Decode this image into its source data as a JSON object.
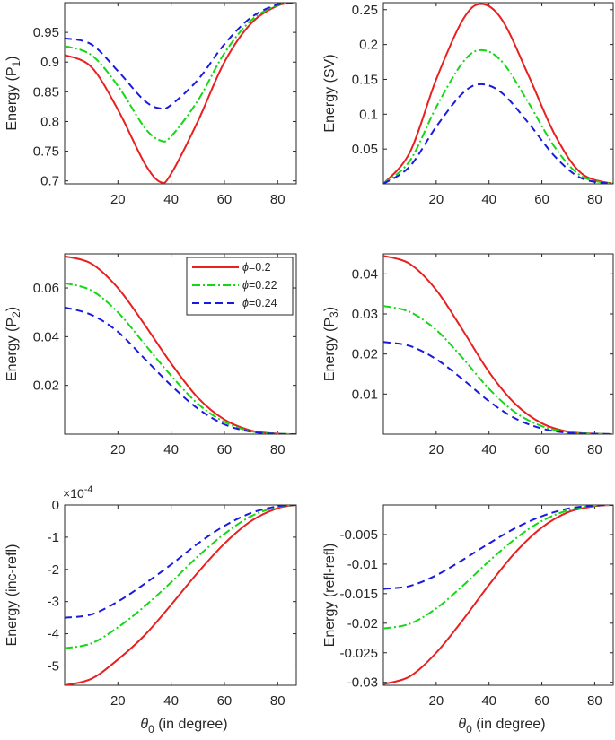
{
  "colors": {
    "phi_0_2": "#e8201f",
    "phi_0_22": "#14d814",
    "phi_0_24": "#1a1adf",
    "axes": "#262626"
  },
  "legend": {
    "entries": [
      "ϕ=0.2",
      "ϕ=0.22",
      "ϕ=0.24"
    ],
    "symbol": "ϕ",
    "values": [
      "0.2",
      "0.22",
      "0.24"
    ],
    "placement": "top-right of middle-left panel"
  },
  "shared_xlabel": {
    "theta": "θ",
    "sub": "0",
    "rest": " (in degree)"
  },
  "chart_data": [
    {
      "type": "line",
      "id": "p1",
      "ylabel_main": "Energy (P",
      "ylabel_sub": "1",
      "ylabel_close": ")",
      "xlim": [
        0,
        87
      ],
      "ylim": [
        0.695,
        1.0
      ],
      "xticks": [
        "20",
        "40",
        "60",
        "80"
      ],
      "yticks": [
        "0.7",
        "0.75",
        "0.8",
        "0.85",
        "0.9",
        "0.95"
      ],
      "x": [
        0,
        10,
        20,
        30,
        36,
        40,
        50,
        60,
        70,
        80,
        87
      ],
      "series": [
        {
          "name": "ϕ=0.2",
          "values": [
            0.912,
            0.892,
            0.82,
            0.73,
            0.698,
            0.712,
            0.8,
            0.9,
            0.965,
            0.995,
            1.0
          ]
        },
        {
          "name": "ϕ=0.22",
          "values": [
            0.927,
            0.912,
            0.86,
            0.79,
            0.768,
            0.775,
            0.835,
            0.915,
            0.97,
            0.996,
            1.0
          ]
        },
        {
          "name": "ϕ=0.24",
          "values": [
            0.94,
            0.93,
            0.885,
            0.835,
            0.822,
            0.828,
            0.87,
            0.93,
            0.975,
            0.997,
            1.0
          ]
        }
      ]
    },
    {
      "type": "line",
      "id": "sv",
      "ylabel_main": "Energy (SV)",
      "ylabel_sub": "",
      "ylabel_close": "",
      "xlim": [
        0,
        87
      ],
      "ylim": [
        0,
        0.26
      ],
      "xticks": [
        "20",
        "40",
        "60",
        "80"
      ],
      "yticks": [
        "0.05",
        "0.1",
        "0.15",
        "0.2",
        "0.25"
      ],
      "x": [
        0,
        10,
        20,
        30,
        37,
        45,
        55,
        65,
        75,
        87
      ],
      "series": [
        {
          "name": "ϕ=0.2",
          "values": [
            0,
            0.045,
            0.15,
            0.235,
            0.258,
            0.235,
            0.155,
            0.07,
            0.015,
            0
          ]
        },
        {
          "name": "ϕ=0.22",
          "values": [
            0,
            0.033,
            0.11,
            0.174,
            0.192,
            0.175,
            0.116,
            0.052,
            0.011,
            0
          ]
        },
        {
          "name": "ϕ=0.24",
          "values": [
            0,
            0.025,
            0.082,
            0.13,
            0.143,
            0.13,
            0.087,
            0.039,
            0.008,
            0
          ]
        }
      ]
    },
    {
      "type": "line",
      "id": "p2",
      "ylabel_main": "Energy (P",
      "ylabel_sub": "2",
      "ylabel_close": ")",
      "xlim": [
        0,
        87
      ],
      "ylim": [
        0,
        0.074
      ],
      "xticks": [
        "20",
        "40",
        "60",
        "80"
      ],
      "yticks": [
        "0.02",
        "0.04",
        "0.06"
      ],
      "x": [
        0,
        10,
        20,
        30,
        40,
        50,
        60,
        70,
        80,
        87
      ],
      "series": [
        {
          "name": "ϕ=0.2",
          "values": [
            0.073,
            0.07,
            0.06,
            0.045,
            0.029,
            0.015,
            0.006,
            0.0015,
            0.0002,
            0
          ]
        },
        {
          "name": "ϕ=0.22",
          "values": [
            0.062,
            0.059,
            0.05,
            0.037,
            0.024,
            0.0125,
            0.005,
            0.0012,
            0.0002,
            0
          ]
        },
        {
          "name": "ϕ=0.24",
          "values": [
            0.052,
            0.049,
            0.042,
            0.031,
            0.02,
            0.0105,
            0.004,
            0.001,
            0.0001,
            0
          ]
        }
      ]
    },
    {
      "type": "line",
      "id": "p3",
      "ylabel_main": "Energy (P",
      "ylabel_sub": "3",
      "ylabel_close": ")",
      "xlim": [
        0,
        87
      ],
      "ylim": [
        0,
        0.045
      ],
      "xticks": [
        "20",
        "40",
        "60",
        "80"
      ],
      "yticks": [
        "0.01",
        "0.02",
        "0.03",
        "0.04"
      ],
      "x": [
        0,
        10,
        20,
        30,
        40,
        50,
        60,
        70,
        80,
        87
      ],
      "series": [
        {
          "name": "ϕ=0.2",
          "values": [
            0.0445,
            0.0425,
            0.036,
            0.026,
            0.0155,
            0.0075,
            0.0027,
            0.0006,
            0.0001,
            0
          ]
        },
        {
          "name": "ϕ=0.22",
          "values": [
            0.032,
            0.0305,
            0.026,
            0.019,
            0.0113,
            0.0054,
            0.002,
            0.0005,
            0.0001,
            0
          ]
        },
        {
          "name": "ϕ=0.24",
          "values": [
            0.023,
            0.022,
            0.0187,
            0.0137,
            0.0082,
            0.0039,
            0.0014,
            0.0003,
            0.0001,
            0
          ]
        }
      ]
    },
    {
      "type": "line",
      "id": "inc-refl",
      "ylabel_main": "Energy (inc-refl)",
      "ylabel_sub": "",
      "ylabel_close": "",
      "sci_base": "×10",
      "sci_exp": "-4",
      "xlim": [
        0,
        87
      ],
      "ylim": [
        -5.6,
        0
      ],
      "xticks": [
        "20",
        "40",
        "60",
        "80"
      ],
      "yticks": [
        "0",
        "-1",
        "-2",
        "-3",
        "-4",
        "-5"
      ],
      "x": [
        0,
        10,
        20,
        30,
        40,
        50,
        60,
        70,
        80,
        87
      ],
      "series": [
        {
          "name": "ϕ=0.2",
          "values": [
            -5.6,
            -5.4,
            -4.8,
            -4.05,
            -3.1,
            -2.1,
            -1.2,
            -0.5,
            -0.1,
            0
          ]
        },
        {
          "name": "ϕ=0.22",
          "values": [
            -4.45,
            -4.3,
            -3.8,
            -3.15,
            -2.4,
            -1.6,
            -0.9,
            -0.35,
            -0.06,
            0
          ]
        },
        {
          "name": "ϕ=0.24",
          "values": [
            -3.5,
            -3.4,
            -3.0,
            -2.45,
            -1.85,
            -1.2,
            -0.65,
            -0.25,
            -0.04,
            0
          ]
        }
      ]
    },
    {
      "type": "line",
      "id": "refl-refl",
      "ylabel_main": "Energy (refl-refl)",
      "ylabel_sub": "",
      "ylabel_close": "",
      "xlim": [
        0,
        87
      ],
      "ylim": [
        -0.0305,
        0
      ],
      "xticks": [
        "20",
        "40",
        "60",
        "80"
      ],
      "yticks": [
        "-0.005",
        "-0.01",
        "-0.015",
        "-0.02",
        "-0.025",
        "-0.03"
      ],
      "x": [
        0,
        10,
        20,
        30,
        40,
        50,
        60,
        70,
        80,
        87
      ],
      "series": [
        {
          "name": "ϕ=0.2",
          "values": [
            -0.0303,
            -0.029,
            -0.025,
            -0.0195,
            -0.0135,
            -0.008,
            -0.0038,
            -0.0012,
            -0.0002,
            0
          ]
        },
        {
          "name": "ϕ=0.22",
          "values": [
            -0.0209,
            -0.0201,
            -0.0175,
            -0.0137,
            -0.0095,
            -0.0057,
            -0.0027,
            -0.0009,
            -0.0001,
            0
          ]
        },
        {
          "name": "ϕ=0.24",
          "values": [
            -0.0142,
            -0.0137,
            -0.0119,
            -0.0093,
            -0.0065,
            -0.0039,
            -0.0019,
            -0.0006,
            -0.0001,
            0
          ]
        }
      ]
    }
  ]
}
